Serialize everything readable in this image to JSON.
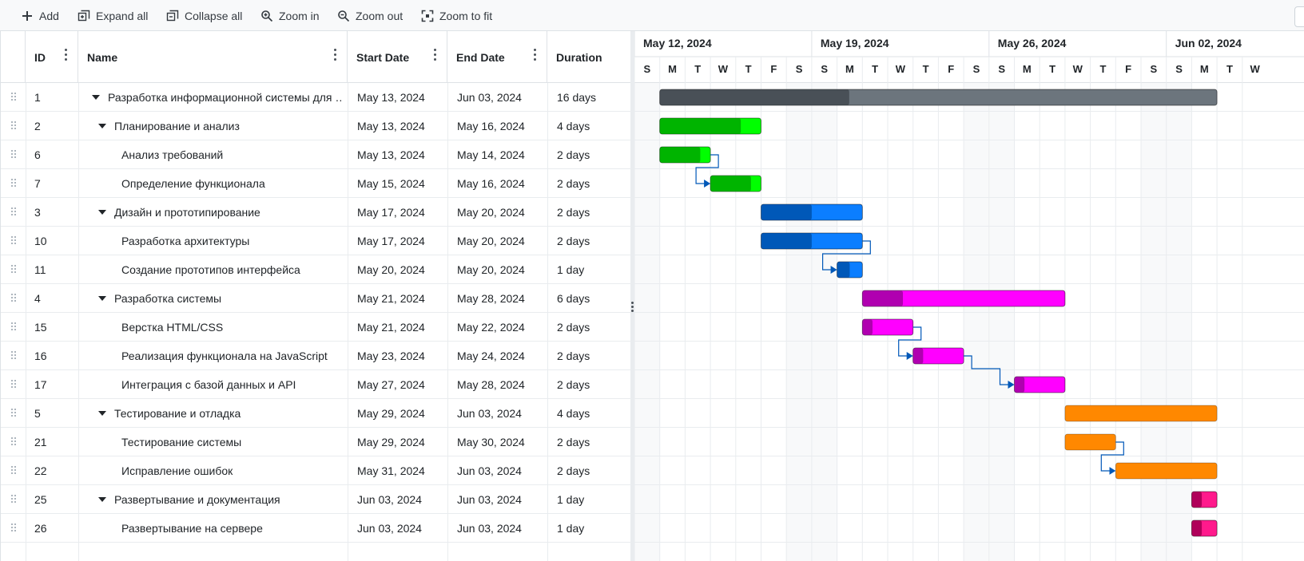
{
  "toolbar": {
    "add": "Add",
    "expand_all": "Expand all",
    "collapse_all": "Collapse all",
    "zoom_in": "Zoom in",
    "zoom_out": "Zoom out",
    "zoom_to_fit": "Zoom to fit"
  },
  "columns": {
    "id": "ID",
    "name": "Name",
    "start": "Start Date",
    "end": "End Date",
    "duration": "Duration"
  },
  "rows": [
    {
      "id": "1",
      "name": "Разработка информационной системы для …",
      "start": "May 13, 2024",
      "end": "Jun 03, 2024",
      "duration": "16 days",
      "level": 0,
      "parent": true
    },
    {
      "id": "2",
      "name": "Планирование и анализ",
      "start": "May 13, 2024",
      "end": "May 16, 2024",
      "duration": "4 days",
      "level": 1,
      "parent": true
    },
    {
      "id": "6",
      "name": "Анализ требований",
      "start": "May 13, 2024",
      "end": "May 14, 2024",
      "duration": "2 days",
      "level": 2,
      "parent": false
    },
    {
      "id": "7",
      "name": "Определение функционала",
      "start": "May 15, 2024",
      "end": "May 16, 2024",
      "duration": "2 days",
      "level": 2,
      "parent": false
    },
    {
      "id": "3",
      "name": "Дизайн и прототипирование",
      "start": "May 17, 2024",
      "end": "May 20, 2024",
      "duration": "2 days",
      "level": 1,
      "parent": true
    },
    {
      "id": "10",
      "name": "Разработка архитектуры",
      "start": "May 17, 2024",
      "end": "May 20, 2024",
      "duration": "2 days",
      "level": 2,
      "parent": false
    },
    {
      "id": "11",
      "name": "Создание прототипов интерфейса",
      "start": "May 20, 2024",
      "end": "May 20, 2024",
      "duration": "1 day",
      "level": 2,
      "parent": false
    },
    {
      "id": "4",
      "name": "Разработка системы",
      "start": "May 21, 2024",
      "end": "May 28, 2024",
      "duration": "6 days",
      "level": 1,
      "parent": true
    },
    {
      "id": "15",
      "name": "Верстка HTML/CSS",
      "start": "May 21, 2024",
      "end": "May 22, 2024",
      "duration": "2 days",
      "level": 2,
      "parent": false
    },
    {
      "id": "16",
      "name": "Реализация функционала на JavaScript",
      "start": "May 23, 2024",
      "end": "May 24, 2024",
      "duration": "2 days",
      "level": 2,
      "parent": false
    },
    {
      "id": "17",
      "name": "Интеграция с базой данных и API",
      "start": "May 27, 2024",
      "end": "May 28, 2024",
      "duration": "2 days",
      "level": 2,
      "parent": false
    },
    {
      "id": "5",
      "name": "Тестирование и отладка",
      "start": "May 29, 2024",
      "end": "Jun 03, 2024",
      "duration": "4 days",
      "level": 1,
      "parent": true
    },
    {
      "id": "21",
      "name": "Тестирование системы",
      "start": "May 29, 2024",
      "end": "May 30, 2024",
      "duration": "2 days",
      "level": 2,
      "parent": false
    },
    {
      "id": "22",
      "name": "Исправление ошибок",
      "start": "May 31, 2024",
      "end": "Jun 03, 2024",
      "duration": "2 days",
      "level": 2,
      "parent": false
    },
    {
      "id": "25",
      "name": "Развертывание и документация",
      "start": "Jun 03, 2024",
      "end": "Jun 03, 2024",
      "duration": "1 day",
      "level": 1,
      "parent": true
    },
    {
      "id": "26",
      "name": "Развертывание на сервере",
      "start": "Jun 03, 2024",
      "end": "Jun 03, 2024",
      "duration": "1 day",
      "level": 2,
      "parent": false
    }
  ],
  "timeline": {
    "weeks": [
      "May 12, 2024",
      "May 19, 2024",
      "May 26, 2024",
      "Jun 02, 2024"
    ],
    "day_letters": [
      "S",
      "M",
      "T",
      "W",
      "T",
      "F",
      "S",
      "S",
      "M",
      "T",
      "W",
      "T",
      "F",
      "S",
      "S",
      "M",
      "T",
      "W",
      "T",
      "F",
      "S",
      "S",
      "M",
      "T",
      "W"
    ]
  },
  "bars": [
    {
      "row": 0,
      "start_day": 1,
      "end_day": 23,
      "progress": 0.34,
      "color": "#6c757d",
      "progress_color": "#495057"
    },
    {
      "row": 1,
      "start_day": 1,
      "end_day": 5,
      "progress": 0.8,
      "color": "#00ff00",
      "progress_color": "#00b400"
    },
    {
      "row": 2,
      "start_day": 1,
      "end_day": 3,
      "progress": 0.8,
      "color": "#00ff00",
      "progress_color": "#00b400"
    },
    {
      "row": 3,
      "start_day": 3,
      "end_day": 5,
      "progress": 0.8,
      "color": "#00ff00",
      "progress_color": "#00b400"
    },
    {
      "row": 4,
      "start_day": 5,
      "end_day": 9,
      "progress": 0.5,
      "color": "#0b7eff",
      "progress_color": "#0058b8"
    },
    {
      "row": 5,
      "start_day": 5,
      "end_day": 9,
      "progress": 0.5,
      "color": "#0b7eff",
      "progress_color": "#0058b8"
    },
    {
      "row": 6,
      "start_day": 8,
      "end_day": 9,
      "progress": 0.5,
      "color": "#0b7eff",
      "progress_color": "#0058b8"
    },
    {
      "row": 7,
      "start_day": 9,
      "end_day": 17,
      "progress": 0.2,
      "color": "#ff00ff",
      "progress_color": "#b000b0"
    },
    {
      "row": 8,
      "start_day": 9,
      "end_day": 11,
      "progress": 0.2,
      "color": "#ff00ff",
      "progress_color": "#b000b0"
    },
    {
      "row": 9,
      "start_day": 11,
      "end_day": 13,
      "progress": 0.2,
      "color": "#ff00ff",
      "progress_color": "#b000b0"
    },
    {
      "row": 10,
      "start_day": 15,
      "end_day": 17,
      "progress": 0.2,
      "color": "#ff00ff",
      "progress_color": "#b000b0"
    },
    {
      "row": 11,
      "start_day": 17,
      "end_day": 23,
      "progress": 0,
      "color": "#ff8800",
      "progress_color": "#cc6a00"
    },
    {
      "row": 12,
      "start_day": 17,
      "end_day": 19,
      "progress": 0,
      "color": "#ff8800",
      "progress_color": "#cc6a00"
    },
    {
      "row": 13,
      "start_day": 19,
      "end_day": 23,
      "progress": 0,
      "color": "#ff8800",
      "progress_color": "#cc6a00"
    },
    {
      "row": 14,
      "start_day": 22,
      "end_day": 23,
      "progress": 0.4,
      "color": "#ff1a8c",
      "progress_color": "#b0005a"
    },
    {
      "row": 15,
      "start_day": 22,
      "end_day": 23,
      "progress": 0.4,
      "color": "#ff1a8c",
      "progress_color": "#b0005a"
    }
  ],
  "dependencies": [
    {
      "from": 2,
      "to": 3
    },
    {
      "from": 5,
      "to": 6
    },
    {
      "from": 8,
      "to": 9
    },
    {
      "from": 9,
      "to": 10
    },
    {
      "from": 12,
      "to": 13
    }
  ],
  "colors": {
    "weekend": "#f8f9fa",
    "grid_line": "#e9ecef",
    "arrow": "#0058b8"
  }
}
